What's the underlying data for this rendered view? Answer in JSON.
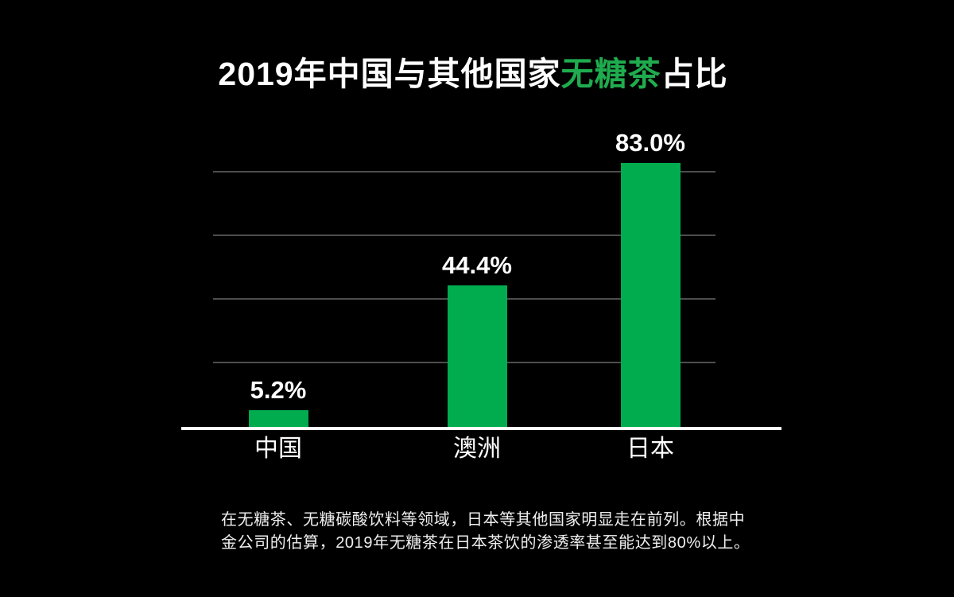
{
  "page": {
    "background": "#000000"
  },
  "title": {
    "prefix": "2019年中国与其他国家",
    "highlight": "无糖茶",
    "suffix": "占比",
    "highlight_color": "#1fac4e",
    "text_color": "#ffffff"
  },
  "chart_data": {
    "type": "bar",
    "title": "2019年中国与其他国家无糖茶占比",
    "categories": [
      "中国",
      "澳洲",
      "日本"
    ],
    "values": [
      5.2,
      44.4,
      83.0
    ],
    "value_labels": [
      "5.2%",
      "44.4%",
      "83.0%"
    ],
    "unit": "%",
    "xlabel": "",
    "ylabel": "",
    "ylim": [
      0,
      90
    ],
    "gridlines_pct": [
      20,
      40,
      60,
      80
    ],
    "grid": true,
    "legend": false,
    "bar_color": "#00ac4e",
    "axis_color": "#ffffff",
    "gridline_color": "#4d4d4d",
    "label_color": "#ffffff"
  },
  "footer": {
    "lines": [
      "在无糖茶、无糖碳酸饮料等领域，日本等其他国家明显走在前列。根据中",
      "金公司的估算，2019年无糖茶在日本茶饮的渗透率甚至能达到80%以上。"
    ]
  }
}
